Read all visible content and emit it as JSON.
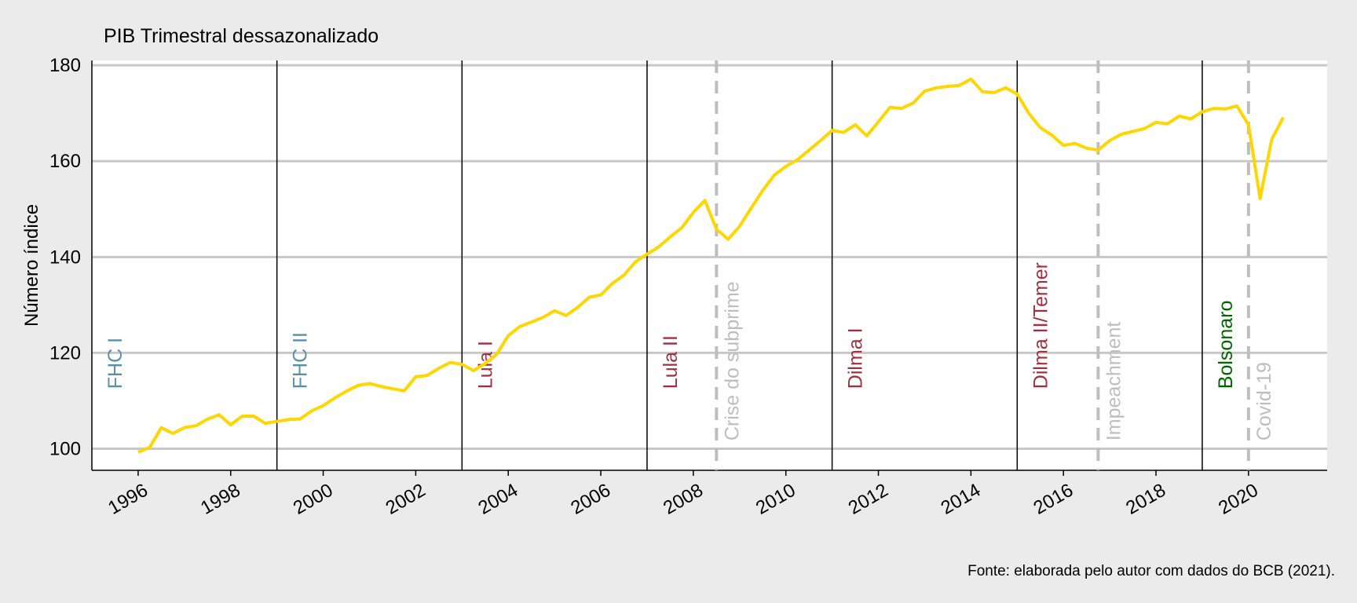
{
  "chart_data": {
    "type": "line",
    "title": "PIB Trimestral dessazonalizado",
    "ylabel": "Número índice",
    "xlabel": "",
    "caption": "Fonte: elaborada pelo autor com dados do BCB (2021).",
    "xlim": [
      1995.0,
      2021.7
    ],
    "ylim": [
      95.5,
      181
    ],
    "yticks": [
      100,
      120,
      140,
      160,
      180
    ],
    "xticks": [
      1996,
      1998,
      2000,
      2002,
      2004,
      2006,
      2008,
      2010,
      2012,
      2014,
      2016,
      2018,
      2020
    ],
    "grid": "horizontal",
    "colors": {
      "series": "#ffd700",
      "fhc": "#5b8fa8",
      "lula_dilma": "#a0303f",
      "bolsonaro": "#006400",
      "event": "#bebebe",
      "grid": "#c8c8c8",
      "panel": "#ffffff",
      "background": "#ebebeb"
    },
    "terms": [
      {
        "label": "FHC I",
        "x": 1995.0,
        "party": "fhc"
      },
      {
        "label": "FHC II",
        "x": 1999.0,
        "party": "fhc"
      },
      {
        "label": "Lula I",
        "x": 2003.0,
        "party": "lula_dilma"
      },
      {
        "label": "Lula II",
        "x": 2007.0,
        "party": "lula_dilma"
      },
      {
        "label": "Dilma I",
        "x": 2011.0,
        "party": "lula_dilma"
      },
      {
        "label": "Dilma II/Temer",
        "x": 2015.0,
        "party": "lula_dilma"
      },
      {
        "label": "Bolsonaro",
        "x": 2019.0,
        "party": "bolsonaro"
      }
    ],
    "events": [
      {
        "label": "Crise do subprime",
        "x": 2008.5
      },
      {
        "label": "Impeachment",
        "x": 2016.75
      },
      {
        "label": "Covid-19",
        "x": 2020.0
      }
    ],
    "series": [
      {
        "x": [
          1996.0,
          1996.25,
          1996.5,
          1996.75,
          1997.0,
          1997.25,
          1997.5,
          1997.75,
          1998.0,
          1998.25,
          1998.5,
          1998.75,
          1999.0,
          1999.25,
          1999.5,
          1999.75,
          2000.0,
          2000.25,
          2000.5,
          2000.75,
          2001.0,
          2001.25,
          2001.5,
          2001.75,
          2002.0,
          2002.25,
          2002.5,
          2002.75,
          2003.0,
          2003.25,
          2003.5,
          2003.75,
          2004.0,
          2004.25,
          2004.5,
          2004.75,
          2005.0,
          2005.25,
          2005.5,
          2005.75,
          2006.0,
          2006.25,
          2006.5,
          2006.75,
          2007.0,
          2007.25,
          2007.5,
          2007.75,
          2008.0,
          2008.25,
          2008.5,
          2008.75,
          2009.0,
          2009.25,
          2009.5,
          2009.75,
          2010.0,
          2010.25,
          2010.5,
          2010.75,
          2011.0,
          2011.25,
          2011.5,
          2011.75,
          2012.0,
          2012.25,
          2012.5,
          2012.75,
          2013.0,
          2013.25,
          2013.5,
          2013.75,
          2014.0,
          2014.25,
          2014.5,
          2014.75,
          2015.0,
          2015.25,
          2015.5,
          2015.75,
          2016.0,
          2016.25,
          2016.5,
          2016.75,
          2017.0,
          2017.25,
          2017.5,
          2017.75,
          2018.0,
          2018.25,
          2018.5,
          2018.75,
          2019.0,
          2019.25,
          2019.5,
          2019.75,
          2020.0,
          2020.25,
          2020.5,
          2020.75
        ],
        "values": [
          99.3,
          100.3,
          104.4,
          103.2,
          104.4,
          104.8,
          106.2,
          107.1,
          105.0,
          106.8,
          106.8,
          105.3,
          105.7,
          106.1,
          106.2,
          107.9,
          109.0,
          110.6,
          112.0,
          113.2,
          113.6,
          113.0,
          112.5,
          112.1,
          115.0,
          115.3,
          116.8,
          118.0,
          117.6,
          116.3,
          117.8,
          119.7,
          123.6,
          125.5,
          126.4,
          127.4,
          128.8,
          127.8,
          129.5,
          131.6,
          132.1,
          134.5,
          136.2,
          139.0,
          140.6,
          142.1,
          144.2,
          146.1,
          149.3,
          151.8,
          145.8,
          143.7,
          146.4,
          150.2,
          153.9,
          157.1,
          158.9,
          160.3,
          162.3,
          164.3,
          166.4,
          166.0,
          167.6,
          165.3,
          168.2,
          171.2,
          171.0,
          172.1,
          174.6,
          175.3,
          175.6,
          175.8,
          177.1,
          174.5,
          174.3,
          175.3,
          174.0,
          170.0,
          167.0,
          165.4,
          163.3,
          163.7,
          162.7,
          162.3,
          164.3,
          165.6,
          166.2,
          166.8,
          168.1,
          167.8,
          169.4,
          168.8,
          170.3,
          171.0,
          170.9,
          171.5,
          167.6,
          152.2,
          164.5,
          169.1
        ]
      }
    ]
  }
}
